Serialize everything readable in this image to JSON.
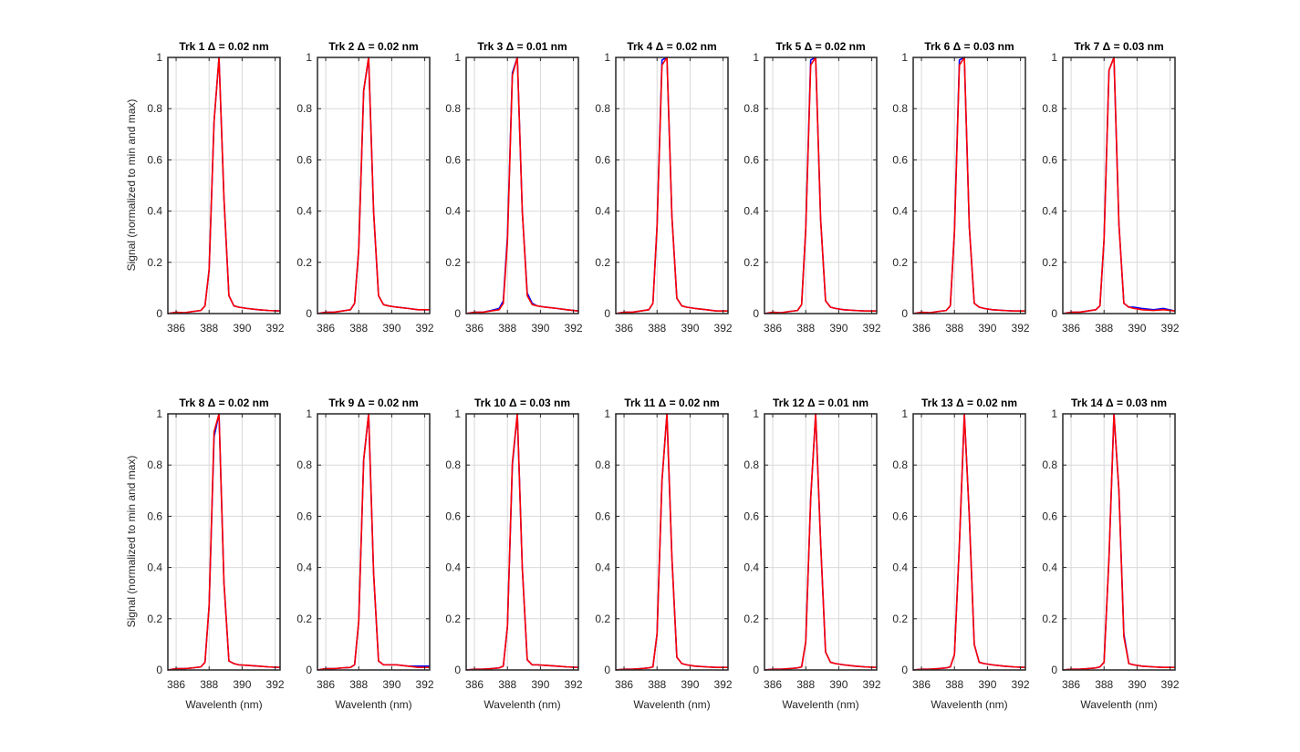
{
  "figure": {
    "ylabel": "Signal (normalized to min and max)",
    "xlabel": "Wavelenth (nm)",
    "colors": {
      "series_a": "#0000ff",
      "series_b": "#ff0000",
      "grid": "#d9d9d9",
      "axes": "#262626"
    }
  },
  "chart_data": [
    {
      "type": "line",
      "title": "Trk 1 Δ = 0.02 nm",
      "xlim": [
        385.5,
        392.3
      ],
      "ylim": [
        0,
        1
      ],
      "xticks": [
        386,
        388,
        390,
        392
      ],
      "yticks": [
        0,
        0.2,
        0.4,
        0.6,
        0.8,
        1
      ],
      "grid": true,
      "x": [
        385.5,
        386.0,
        386.5,
        387.0,
        387.5,
        387.75,
        388.0,
        388.3,
        388.6,
        388.9,
        389.2,
        389.5,
        389.8,
        390.3,
        391.0,
        391.6,
        392.3
      ],
      "series": [
        {
          "values": [
            0.0,
            0.005,
            0.003,
            0.008,
            0.012,
            0.03,
            0.17,
            0.75,
            1.0,
            0.45,
            0.07,
            0.03,
            0.025,
            0.02,
            0.015,
            0.012,
            0.01
          ]
        },
        {
          "values": [
            0.0,
            0.005,
            0.003,
            0.008,
            0.012,
            0.03,
            0.17,
            0.75,
            1.0,
            0.45,
            0.07,
            0.03,
            0.025,
            0.02,
            0.015,
            0.012,
            0.01
          ]
        }
      ]
    },
    {
      "type": "line",
      "title": "Trk 2 Δ = 0.02 nm",
      "xlim": [
        385.5,
        392.3
      ],
      "ylim": [
        0,
        1
      ],
      "xticks": [
        386,
        388,
        390,
        392
      ],
      "yticks": [
        0,
        0.2,
        0.4,
        0.6,
        0.8,
        1
      ],
      "grid": true,
      "x": [
        385.5,
        386.0,
        386.5,
        387.0,
        387.5,
        387.75,
        388.0,
        388.3,
        388.6,
        388.9,
        389.2,
        389.5,
        389.8,
        390.3,
        391.0,
        391.6,
        392.3
      ],
      "series": [
        {
          "values": [
            0.0,
            0.005,
            0.005,
            0.01,
            0.015,
            0.04,
            0.25,
            0.87,
            1.0,
            0.4,
            0.07,
            0.035,
            0.03,
            0.025,
            0.02,
            0.015,
            0.015
          ]
        },
        {
          "values": [
            0.0,
            0.005,
            0.005,
            0.01,
            0.015,
            0.04,
            0.25,
            0.87,
            1.0,
            0.4,
            0.07,
            0.035,
            0.03,
            0.025,
            0.02,
            0.015,
            0.015
          ]
        }
      ]
    },
    {
      "type": "line",
      "title": "Trk 3 Δ = 0.01 nm",
      "xlim": [
        385.5,
        392.3
      ],
      "ylim": [
        0,
        1
      ],
      "xticks": [
        386,
        388,
        390,
        392
      ],
      "yticks": [
        0,
        0.2,
        0.4,
        0.6,
        0.8,
        1
      ],
      "grid": true,
      "x": [
        385.5,
        386.0,
        386.5,
        387.0,
        387.5,
        387.75,
        388.0,
        388.3,
        388.6,
        388.9,
        389.2,
        389.5,
        389.8,
        390.3,
        391.0,
        391.6,
        392.3
      ],
      "series": [
        {
          "values": [
            0.0,
            0.005,
            0.005,
            0.012,
            0.02,
            0.05,
            0.3,
            0.94,
            1.0,
            0.4,
            0.08,
            0.04,
            0.03,
            0.025,
            0.02,
            0.015,
            0.01
          ]
        },
        {
          "values": [
            0.0,
            0.005,
            0.005,
            0.01,
            0.015,
            0.04,
            0.28,
            0.93,
            1.0,
            0.4,
            0.07,
            0.035,
            0.03,
            0.025,
            0.02,
            0.015,
            0.01
          ]
        }
      ]
    },
    {
      "type": "line",
      "title": "Trk 4 Δ = 0.02 nm",
      "xlim": [
        385.5,
        392.3
      ],
      "ylim": [
        0,
        1
      ],
      "xticks": [
        386,
        388,
        390,
        392
      ],
      "yticks": [
        0,
        0.2,
        0.4,
        0.6,
        0.8,
        1
      ],
      "grid": true,
      "x": [
        385.5,
        386.0,
        386.5,
        387.0,
        387.5,
        387.75,
        388.0,
        388.3,
        388.6,
        388.9,
        389.2,
        389.5,
        389.8,
        390.3,
        391.0,
        391.6,
        392.3
      ],
      "series": [
        {
          "values": [
            0.0,
            0.005,
            0.005,
            0.01,
            0.015,
            0.04,
            0.34,
            0.99,
            1.0,
            0.38,
            0.06,
            0.03,
            0.025,
            0.02,
            0.015,
            0.01,
            0.01
          ]
        },
        {
          "values": [
            0.0,
            0.005,
            0.005,
            0.01,
            0.015,
            0.04,
            0.34,
            0.97,
            1.0,
            0.38,
            0.06,
            0.03,
            0.025,
            0.02,
            0.015,
            0.01,
            0.01
          ]
        }
      ]
    },
    {
      "type": "line",
      "title": "Trk 5 Δ = 0.02 nm",
      "xlim": [
        385.5,
        392.3
      ],
      "ylim": [
        0,
        1
      ],
      "xticks": [
        386,
        388,
        390,
        392
      ],
      "yticks": [
        0,
        0.2,
        0.4,
        0.6,
        0.8,
        1
      ],
      "grid": true,
      "x": [
        385.5,
        386.0,
        386.5,
        387.0,
        387.5,
        387.75,
        388.0,
        388.3,
        388.6,
        388.9,
        389.2,
        389.5,
        389.8,
        390.3,
        391.0,
        391.6,
        392.3
      ],
      "series": [
        {
          "values": [
            0.0,
            0.005,
            0.003,
            0.008,
            0.012,
            0.035,
            0.33,
            0.99,
            1.0,
            0.37,
            0.05,
            0.025,
            0.02,
            0.015,
            0.012,
            0.01,
            0.01
          ]
        },
        {
          "values": [
            0.0,
            0.005,
            0.003,
            0.008,
            0.012,
            0.035,
            0.33,
            0.97,
            1.0,
            0.37,
            0.05,
            0.025,
            0.02,
            0.015,
            0.012,
            0.01,
            0.01
          ]
        }
      ]
    },
    {
      "type": "line",
      "title": "Trk 6 Δ = 0.03 nm",
      "xlim": [
        385.5,
        392.3
      ],
      "ylim": [
        0,
        1
      ],
      "xticks": [
        386,
        388,
        390,
        392
      ],
      "yticks": [
        0,
        0.2,
        0.4,
        0.6,
        0.8,
        1
      ],
      "grid": true,
      "x": [
        385.5,
        386.0,
        386.5,
        387.0,
        387.5,
        387.75,
        388.0,
        388.3,
        388.6,
        388.9,
        389.2,
        389.5,
        389.8,
        390.3,
        391.0,
        391.6,
        392.3
      ],
      "series": [
        {
          "values": [
            0.0,
            0.005,
            0.003,
            0.008,
            0.012,
            0.03,
            0.32,
            0.99,
            1.0,
            0.34,
            0.04,
            0.025,
            0.02,
            0.015,
            0.012,
            0.01,
            0.01
          ]
        },
        {
          "values": [
            0.0,
            0.005,
            0.003,
            0.008,
            0.012,
            0.03,
            0.32,
            0.97,
            1.0,
            0.34,
            0.04,
            0.025,
            0.02,
            0.015,
            0.012,
            0.01,
            0.01
          ]
        }
      ]
    },
    {
      "type": "line",
      "title": "Trk 7 Δ = 0.03 nm",
      "xlim": [
        385.5,
        392.3
      ],
      "ylim": [
        0,
        1
      ],
      "xticks": [
        386,
        388,
        390,
        392
      ],
      "yticks": [
        0,
        0.2,
        0.4,
        0.6,
        0.8,
        1
      ],
      "grid": true,
      "x": [
        385.5,
        386.0,
        386.5,
        387.0,
        387.5,
        387.75,
        388.0,
        388.3,
        388.6,
        388.9,
        389.2,
        389.5,
        389.8,
        390.3,
        391.0,
        391.6,
        392.3
      ],
      "series": [
        {
          "values": [
            0.0,
            0.005,
            0.005,
            0.01,
            0.015,
            0.03,
            0.29,
            0.95,
            1.0,
            0.35,
            0.04,
            0.025,
            0.025,
            0.02,
            0.015,
            0.02,
            0.01
          ]
        },
        {
          "values": [
            0.0,
            0.005,
            0.005,
            0.01,
            0.015,
            0.03,
            0.29,
            0.95,
            1.0,
            0.35,
            0.04,
            0.025,
            0.02,
            0.015,
            0.012,
            0.015,
            0.01
          ]
        }
      ]
    },
    {
      "type": "line",
      "title": "Trk 8 Δ = 0.02 nm",
      "xlim": [
        385.5,
        392.3
      ],
      "ylim": [
        0,
        1
      ],
      "xticks": [
        386,
        388,
        390,
        392
      ],
      "yticks": [
        0,
        0.2,
        0.4,
        0.6,
        0.8,
        1
      ],
      "grid": true,
      "x": [
        385.5,
        386.0,
        386.5,
        387.0,
        387.5,
        387.75,
        388.0,
        388.3,
        388.6,
        388.9,
        389.2,
        389.5,
        389.8,
        390.3,
        391.0,
        391.6,
        392.3
      ],
      "series": [
        {
          "values": [
            0.0,
            0.005,
            0.005,
            0.008,
            0.012,
            0.03,
            0.25,
            0.91,
            1.0,
            0.34,
            0.035,
            0.025,
            0.02,
            0.018,
            0.015,
            0.012,
            0.01
          ]
        },
        {
          "values": [
            0.0,
            0.005,
            0.005,
            0.008,
            0.012,
            0.03,
            0.25,
            0.93,
            1.0,
            0.34,
            0.035,
            0.025,
            0.02,
            0.018,
            0.015,
            0.012,
            0.01
          ]
        }
      ]
    },
    {
      "type": "line",
      "title": "Trk 9 Δ = 0.02 nm",
      "xlim": [
        385.5,
        392.3
      ],
      "ylim": [
        0,
        1
      ],
      "xticks": [
        386,
        388,
        390,
        392
      ],
      "yticks": [
        0,
        0.2,
        0.4,
        0.6,
        0.8,
        1
      ],
      "grid": true,
      "x": [
        385.5,
        386.0,
        386.5,
        387.0,
        387.5,
        387.75,
        388.0,
        388.3,
        388.6,
        388.9,
        389.2,
        389.5,
        389.8,
        390.3,
        391.0,
        391.6,
        392.3
      ],
      "series": [
        {
          "values": [
            0.0,
            0.005,
            0.005,
            0.008,
            0.01,
            0.02,
            0.19,
            0.82,
            1.0,
            0.38,
            0.035,
            0.02,
            0.02,
            0.02,
            0.015,
            0.015,
            0.015
          ]
        },
        {
          "values": [
            0.0,
            0.005,
            0.005,
            0.008,
            0.01,
            0.02,
            0.19,
            0.82,
            1.0,
            0.38,
            0.035,
            0.02,
            0.02,
            0.02,
            0.015,
            0.01,
            0.01
          ]
        }
      ]
    },
    {
      "type": "line",
      "title": "Trk 10 Δ = 0.03 nm",
      "xlim": [
        385.5,
        392.3
      ],
      "ylim": [
        0,
        1
      ],
      "xticks": [
        386,
        388,
        390,
        392
      ],
      "yticks": [
        0,
        0.2,
        0.4,
        0.6,
        0.8,
        1
      ],
      "grid": true,
      "x": [
        385.5,
        386.0,
        386.5,
        387.0,
        387.5,
        387.75,
        388.0,
        388.3,
        388.6,
        388.9,
        389.2,
        389.5,
        389.8,
        390.3,
        391.0,
        391.6,
        392.3
      ],
      "series": [
        {
          "values": [
            0.0,
            0.003,
            0.003,
            0.005,
            0.008,
            0.015,
            0.17,
            0.8,
            1.0,
            0.4,
            0.04,
            0.02,
            0.02,
            0.018,
            0.015,
            0.012,
            0.01
          ]
        },
        {
          "values": [
            0.0,
            0.003,
            0.003,
            0.005,
            0.008,
            0.015,
            0.17,
            0.81,
            1.0,
            0.4,
            0.04,
            0.02,
            0.02,
            0.018,
            0.015,
            0.012,
            0.01
          ]
        }
      ]
    },
    {
      "type": "line",
      "title": "Trk 11 Δ = 0.02 nm",
      "xlim": [
        385.5,
        392.3
      ],
      "ylim": [
        0,
        1
      ],
      "xticks": [
        386,
        388,
        390,
        392
      ],
      "yticks": [
        0,
        0.2,
        0.4,
        0.6,
        0.8,
        1
      ],
      "grid": true,
      "x": [
        385.5,
        386.0,
        386.5,
        387.0,
        387.5,
        387.75,
        388.0,
        388.3,
        388.6,
        388.9,
        389.2,
        389.5,
        389.8,
        390.3,
        391.0,
        391.6,
        392.3
      ],
      "series": [
        {
          "values": [
            0.0,
            0.003,
            0.003,
            0.005,
            0.008,
            0.012,
            0.14,
            0.74,
            1.0,
            0.44,
            0.05,
            0.025,
            0.02,
            0.015,
            0.012,
            0.01,
            0.01
          ]
        },
        {
          "values": [
            0.0,
            0.003,
            0.003,
            0.005,
            0.008,
            0.012,
            0.14,
            0.74,
            1.0,
            0.44,
            0.05,
            0.025,
            0.02,
            0.015,
            0.012,
            0.01,
            0.01
          ]
        }
      ]
    },
    {
      "type": "line",
      "title": "Trk 12 Δ = 0.01 nm",
      "xlim": [
        385.5,
        392.3
      ],
      "ylim": [
        0,
        1
      ],
      "xticks": [
        386,
        388,
        390,
        392
      ],
      "yticks": [
        0,
        0.2,
        0.4,
        0.6,
        0.8,
        1
      ],
      "grid": true,
      "x": [
        385.5,
        386.0,
        386.5,
        387.0,
        387.5,
        387.75,
        388.0,
        388.3,
        388.6,
        388.9,
        389.2,
        389.5,
        389.8,
        390.3,
        391.0,
        391.6,
        392.3
      ],
      "series": [
        {
          "values": [
            0.0,
            0.003,
            0.003,
            0.005,
            0.008,
            0.012,
            0.11,
            0.67,
            1.0,
            0.5,
            0.07,
            0.03,
            0.025,
            0.02,
            0.015,
            0.012,
            0.01
          ]
        },
        {
          "values": [
            0.0,
            0.003,
            0.003,
            0.005,
            0.008,
            0.012,
            0.11,
            0.67,
            1.0,
            0.5,
            0.07,
            0.03,
            0.025,
            0.02,
            0.015,
            0.012,
            0.01
          ]
        }
      ]
    },
    {
      "type": "line",
      "title": "Trk 13 Δ = 0.02 nm",
      "xlim": [
        385.5,
        392.3
      ],
      "ylim": [
        0,
        1
      ],
      "xticks": [
        386,
        388,
        390,
        392
      ],
      "yticks": [
        0,
        0.2,
        0.4,
        0.6,
        0.8,
        1
      ],
      "grid": true,
      "x": [
        385.5,
        386.0,
        386.5,
        387.0,
        387.5,
        387.75,
        388.0,
        388.3,
        388.6,
        388.9,
        389.2,
        389.5,
        389.8,
        390.3,
        391.0,
        391.6,
        392.3
      ],
      "series": [
        {
          "values": [
            0.0,
            0.003,
            0.003,
            0.005,
            0.008,
            0.012,
            0.06,
            0.49,
            1.0,
            0.6,
            0.1,
            0.03,
            0.025,
            0.02,
            0.015,
            0.012,
            0.01
          ]
        },
        {
          "values": [
            0.0,
            0.003,
            0.003,
            0.005,
            0.008,
            0.012,
            0.06,
            0.49,
            1.0,
            0.6,
            0.1,
            0.03,
            0.025,
            0.02,
            0.015,
            0.012,
            0.01
          ]
        }
      ]
    },
    {
      "type": "line",
      "title": "Trk 14 Δ = 0.03 nm",
      "xlim": [
        385.5,
        392.3
      ],
      "ylim": [
        0,
        1
      ],
      "xticks": [
        386,
        388,
        390,
        392
      ],
      "yticks": [
        0,
        0.2,
        0.4,
        0.6,
        0.8,
        1
      ],
      "grid": true,
      "x": [
        385.5,
        386.0,
        386.5,
        387.0,
        387.5,
        387.75,
        388.0,
        388.3,
        388.6,
        388.9,
        389.2,
        389.5,
        389.8,
        390.3,
        391.0,
        391.6,
        392.3
      ],
      "series": [
        {
          "values": [
            0.0,
            0.003,
            0.003,
            0.005,
            0.008,
            0.012,
            0.03,
            0.44,
            1.0,
            0.7,
            0.14,
            0.025,
            0.02,
            0.015,
            0.012,
            0.01,
            0.01
          ]
        },
        {
          "values": [
            0.0,
            0.003,
            0.003,
            0.005,
            0.008,
            0.012,
            0.03,
            0.44,
            1.0,
            0.7,
            0.13,
            0.025,
            0.02,
            0.015,
            0.012,
            0.01,
            0.01
          ]
        }
      ]
    }
  ]
}
